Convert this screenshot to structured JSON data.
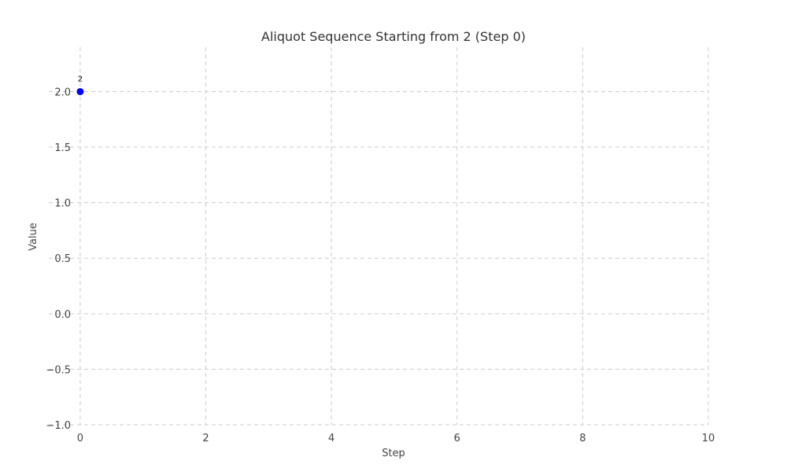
{
  "chart_data": {
    "type": "scatter",
    "title": "Aliquot Sequence Starting from 2 (Step 0)",
    "xlabel": "Step",
    "ylabel": "Value",
    "xlim": [
      -0.5,
      10
    ],
    "ylim": [
      -1.0,
      2.4
    ],
    "xticks": [
      0,
      2,
      4,
      6,
      8,
      10
    ],
    "yticks": [
      -1.0,
      -0.5,
      0.0,
      0.5,
      1.0,
      1.5,
      2.0
    ],
    "xtick_labels": [
      "0",
      "2",
      "4",
      "6",
      "8",
      "10"
    ],
    "ytick_labels": [
      "−1.0",
      "−0.5",
      "0.0",
      "0.5",
      "1.0",
      "1.5",
      "2.0"
    ],
    "grid": true,
    "series": [
      {
        "x": [
          0
        ],
        "y": [
          2
        ],
        "labels": [
          "2"
        ],
        "color": "#0000ff"
      }
    ]
  }
}
